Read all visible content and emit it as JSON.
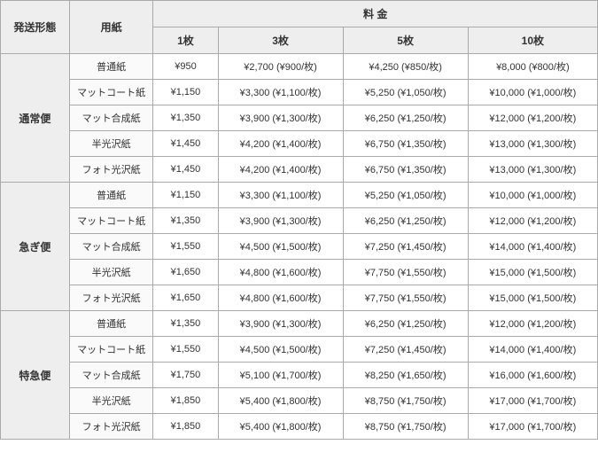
{
  "headers": {
    "shipping": "発送形態",
    "paper": "用紙",
    "price": "料 金",
    "qty1": "1枚",
    "qty3": "3枚",
    "qty5": "5枚",
    "qty10": "10枚"
  },
  "shipping_types": [
    "通常便",
    "急ぎ便",
    "特急便"
  ],
  "paper_types": [
    "普通紙",
    "マットコート紙",
    "マット合成紙",
    "半光沢紙",
    "フォト光沢紙"
  ],
  "prices": {
    "通常便": {
      "普通紙": {
        "q1": "¥950",
        "q3": "¥2,700 (¥900/枚)",
        "q5": "¥4,250 (¥850/枚)",
        "q10": "¥8,000 (¥800/枚)"
      },
      "マットコート紙": {
        "q1": "¥1,150",
        "q3": "¥3,300 (¥1,100/枚)",
        "q5": "¥5,250 (¥1,050/枚)",
        "q10": "¥10,000 (¥1,000/枚)"
      },
      "マット合成紙": {
        "q1": "¥1,350",
        "q3": "¥3,900 (¥1,300/枚)",
        "q5": "¥6,250 (¥1,250/枚)",
        "q10": "¥12,000 (¥1,200/枚)"
      },
      "半光沢紙": {
        "q1": "¥1,450",
        "q3": "¥4,200 (¥1,400/枚)",
        "q5": "¥6,750 (¥1,350/枚)",
        "q10": "¥13,000 (¥1,300/枚)"
      },
      "フォト光沢紙": {
        "q1": "¥1,450",
        "q3": "¥4,200 (¥1,400/枚)",
        "q5": "¥6,750 (¥1,350/枚)",
        "q10": "¥13,000 (¥1,300/枚)"
      }
    },
    "急ぎ便": {
      "普通紙": {
        "q1": "¥1,150",
        "q3": "¥3,300 (¥1,100/枚)",
        "q5": "¥5,250 (¥1,050/枚)",
        "q10": "¥10,000 (¥1,000/枚)"
      },
      "マットコート紙": {
        "q1": "¥1,350",
        "q3": "¥3,900 (¥1,300/枚)",
        "q5": "¥6,250 (¥1,250/枚)",
        "q10": "¥12,000 (¥1,200/枚)"
      },
      "マット合成紙": {
        "q1": "¥1,550",
        "q3": "¥4,500 (¥1,500/枚)",
        "q5": "¥7,250 (¥1,450/枚)",
        "q10": "¥14,000 (¥1,400/枚)"
      },
      "半光沢紙": {
        "q1": "¥1,650",
        "q3": "¥4,800 (¥1,600/枚)",
        "q5": "¥7,750 (¥1,550/枚)",
        "q10": "¥15,000 (¥1,500/枚)"
      },
      "フォト光沢紙": {
        "q1": "¥1,650",
        "q3": "¥4,800 (¥1,600/枚)",
        "q5": "¥7,750 (¥1,550/枚)",
        "q10": "¥15,000 (¥1,500/枚)"
      }
    },
    "特急便": {
      "普通紙": {
        "q1": "¥1,350",
        "q3": "¥3,900 (¥1,300/枚)",
        "q5": "¥6,250 (¥1,250/枚)",
        "q10": "¥12,000 (¥1,200/枚)"
      },
      "マットコート紙": {
        "q1": "¥1,550",
        "q3": "¥4,500 (¥1,500/枚)",
        "q5": "¥7,250 (¥1,450/枚)",
        "q10": "¥14,000 (¥1,400/枚)"
      },
      "マット合成紙": {
        "q1": "¥1,750",
        "q3": "¥5,100 (¥1,700/枚)",
        "q5": "¥8,250 (¥1,650/枚)",
        "q10": "¥16,000 (¥1,600/枚)"
      },
      "半光沢紙": {
        "q1": "¥1,850",
        "q3": "¥5,400 (¥1,800/枚)",
        "q5": "¥8,750 (¥1,750/枚)",
        "q10": "¥17,000 (¥1,700/枚)"
      },
      "フォト光沢紙": {
        "q1": "¥1,850",
        "q3": "¥5,400 (¥1,800/枚)",
        "q5": "¥8,750 (¥1,750/枚)",
        "q10": "¥17,000 (¥1,700/枚)"
      }
    }
  }
}
